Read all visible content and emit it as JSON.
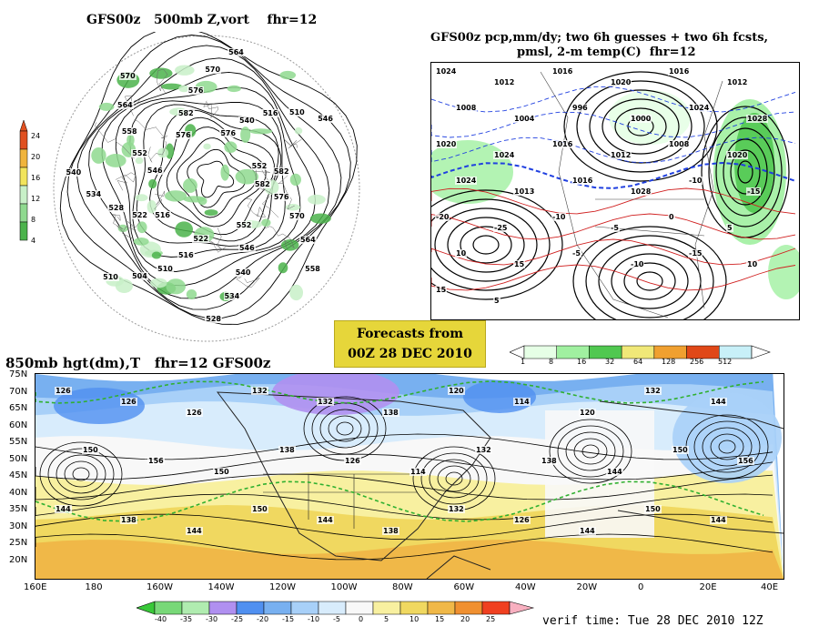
{
  "panel_500": {
    "title": "GFS00z   500mb Z,vort    fhr=12",
    "colorbar_ticks": [
      "24",
      "20",
      "16",
      "12",
      "8",
      "4"
    ],
    "contour_labels": [
      "582",
      "576",
      "570",
      "564",
      "558",
      "552",
      "546",
      "540",
      "534",
      "528",
      "522",
      "516",
      "510",
      "504",
      "510",
      "516",
      "522",
      "528",
      "534",
      "540",
      "546",
      "552",
      "558",
      "564",
      "570",
      "576",
      "582",
      "576",
      "570",
      "564",
      "576",
      "540",
      "516",
      "510",
      "546",
      "552",
      "582"
    ]
  },
  "panel_pcp": {
    "title_line1": "GFS00z pcp,mm/dy; two 6h guesses + two 6h fcsts,",
    "title_line2": "pmsl, 2-m temp(C)  fhr=12",
    "colorbar_ticks": [
      "1",
      "8",
      "16",
      "32",
      "64",
      "128",
      "256",
      "512"
    ],
    "contour_labels": [
      "1024",
      "1012",
      "1016",
      "1020",
      "1016",
      "1012",
      "1008",
      "1004",
      "996",
      "1000",
      "1024",
      "1028",
      "1020",
      "1024",
      "1016",
      "1012",
      "1008",
      "1020",
      "1024",
      "1013",
      "1016",
      "1028",
      "-10",
      "-15",
      "-20",
      "-25",
      "-10",
      "-5",
      "0",
      "5",
      "10",
      "15",
      "-5",
      "-10",
      "-15",
      "10",
      "15",
      "5"
    ]
  },
  "forecast_box": {
    "line1": "Forecasts from",
    "line2": "00Z 28 DEC 2010"
  },
  "panel_850": {
    "title": "850mb hgt(dm),T   fhr=12 GFS00z",
    "lat_labels": [
      "75N",
      "70N",
      "65N",
      "60N",
      "55N",
      "50N",
      "45N",
      "40N",
      "35N",
      "30N",
      "25N",
      "20N"
    ],
    "lon_labels": [
      "160E",
      "180",
      "160W",
      "140W",
      "120W",
      "100W",
      "80W",
      "60W",
      "40W",
      "20W",
      "0",
      "20E",
      "40E"
    ],
    "contour_labels": [
      "126",
      "126",
      "126",
      "132",
      "132",
      "138",
      "120",
      "114",
      "120",
      "132",
      "144",
      "150",
      "156",
      "150",
      "138",
      "126",
      "114",
      "132",
      "138",
      "144",
      "150",
      "156",
      "144",
      "138",
      "144",
      "150",
      "144",
      "138",
      "132",
      "126",
      "144",
      "150",
      "144"
    ],
    "colorbar_ticks": [
      "-40",
      "-35",
      "-30",
      "-25",
      "-20",
      "-15",
      "-10",
      "-5",
      "0",
      "5",
      "10",
      "15",
      "20",
      "25"
    ]
  },
  "verif": "verif time: Tue 28 DEC 2010 12Z",
  "colors": {
    "vort_scale": [
      "#4bb34b",
      "#8fd98f",
      "#c8f0c8",
      "#f2e45c",
      "#f0b43c",
      "#e05020"
    ],
    "pcp_scale": [
      "#e6ffe6",
      "#a0f0a0",
      "#50c850",
      "#f0e878",
      "#f0a030",
      "#e04818",
      "#c8f0f8"
    ],
    "temp_scale": [
      "#38c838",
      "#78d878",
      "#b0ecb0",
      "#b090f0",
      "#5090f0",
      "#78b0f0",
      "#a8d0f8",
      "#d8ecfc",
      "#f8f8f8",
      "#f8f0a0",
      "#f0d860",
      "#f0b848",
      "#f09030",
      "#f04020",
      "#f8b0c0"
    ]
  }
}
